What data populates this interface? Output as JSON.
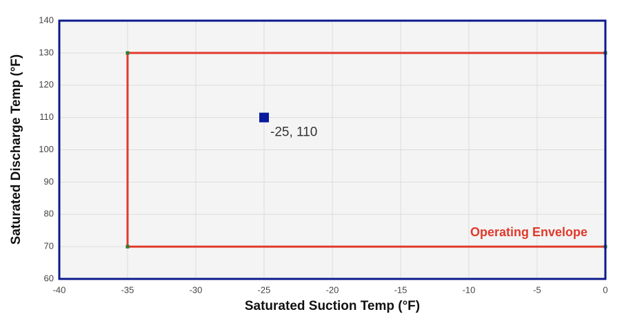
{
  "chart_data": {
    "type": "scatter",
    "x_label": "Saturated Suction Temp (°F)",
    "y_label": "Saturated Discharge Temp (°F)",
    "xlim": [
      -40,
      0
    ],
    "xticks": [
      -40,
      -35,
      -30,
      -25,
      -20,
      -15,
      -10,
      -5,
      0
    ],
    "ylim": [
      60,
      140
    ],
    "yticks": [
      60,
      70,
      80,
      90,
      100,
      110,
      120,
      130,
      140
    ],
    "grid": true,
    "series": [
      {
        "name": "Operating Envelope",
        "mode": "line",
        "color": "#e0392b",
        "marker_color": "#2e7d32",
        "x": [
          -35,
          0,
          0,
          -35,
          -35
        ],
        "values": [
          70,
          70,
          130,
          130,
          70
        ]
      },
      {
        "mode": "marker",
        "color": "#0a1a9c",
        "x": [
          -25
        ],
        "values": [
          110
        ],
        "value_labels": [
          "-25, 110"
        ]
      }
    ]
  }
}
